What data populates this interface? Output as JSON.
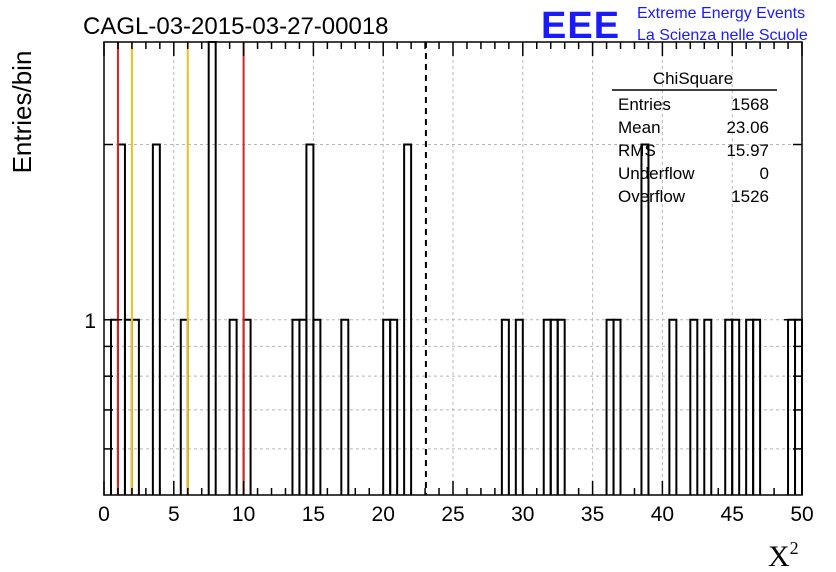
{
  "chart_data": {
    "type": "histogram",
    "title": "CAGL-03-2015-03-27-00018",
    "xlabel": "X",
    "xlabel_superscript": "2",
    "ylabel": "Entries/bin",
    "xlim": [
      0,
      50
    ],
    "ylim": [
      0.5,
      3
    ],
    "yscale": "log",
    "bin_width": 0.5,
    "grid": true,
    "x_ticks": [
      "0",
      "5",
      "10",
      "15",
      "20",
      "25",
      "30",
      "35",
      "40",
      "45",
      "50"
    ],
    "y_ticks": [
      "1"
    ],
    "bins": [
      {
        "x": 0.5,
        "y": 1
      },
      {
        "x": 1.0,
        "y": 2
      },
      {
        "x": 1.5,
        "y": 1
      },
      {
        "x": 2.0,
        "y": 1
      },
      {
        "x": 3.5,
        "y": 2
      },
      {
        "x": 5.5,
        "y": 1
      },
      {
        "x": 7.5,
        "y": 3
      },
      {
        "x": 9.0,
        "y": 1
      },
      {
        "x": 10.0,
        "y": 1
      },
      {
        "x": 13.5,
        "y": 1
      },
      {
        "x": 14.0,
        "y": 1
      },
      {
        "x": 14.5,
        "y": 2
      },
      {
        "x": 15.0,
        "y": 1
      },
      {
        "x": 17.0,
        "y": 1
      },
      {
        "x": 20.0,
        "y": 1
      },
      {
        "x": 20.5,
        "y": 1
      },
      {
        "x": 21.5,
        "y": 2
      },
      {
        "x": 28.5,
        "y": 1
      },
      {
        "x": 29.5,
        "y": 1
      },
      {
        "x": 31.5,
        "y": 1
      },
      {
        "x": 32.0,
        "y": 1
      },
      {
        "x": 32.5,
        "y": 1
      },
      {
        "x": 36.0,
        "y": 1
      },
      {
        "x": 36.5,
        "y": 1
      },
      {
        "x": 38.5,
        "y": 2
      },
      {
        "x": 40.5,
        "y": 1
      },
      {
        "x": 42.0,
        "y": 1
      },
      {
        "x": 43.0,
        "y": 1
      },
      {
        "x": 44.5,
        "y": 1
      },
      {
        "x": 45.0,
        "y": 1
      },
      {
        "x": 46.0,
        "y": 1
      },
      {
        "x": 46.5,
        "y": 1
      },
      {
        "x": 49.0,
        "y": 1
      },
      {
        "x": 49.5,
        "y": 1
      }
    ],
    "reference_lines": [
      {
        "x": 1.0,
        "color": "#dd2222",
        "style": "solid"
      },
      {
        "x": 2.0,
        "color": "#f0c020",
        "style": "solid"
      },
      {
        "x": 6.0,
        "color": "#f0c020",
        "style": "solid"
      },
      {
        "x": 10.0,
        "color": "#dd2222",
        "style": "solid"
      },
      {
        "x": 23.06,
        "color": "#000000",
        "style": "dashed"
      }
    ],
    "stats_box": {
      "title": "ChiSquare",
      "rows": [
        {
          "label": "Entries",
          "value": "1568"
        },
        {
          "label": "Mean",
          "value": "23.06"
        },
        {
          "label": "RMS",
          "value": "15.97"
        },
        {
          "label": "Underflow",
          "value": "0"
        },
        {
          "label": "Overflow",
          "value": "1526"
        }
      ]
    }
  },
  "logo": {
    "text": "EEE",
    "line1": "Extreme Energy Events",
    "line2": "La Scienza nelle Scuole",
    "color": "#1a1aff"
  }
}
